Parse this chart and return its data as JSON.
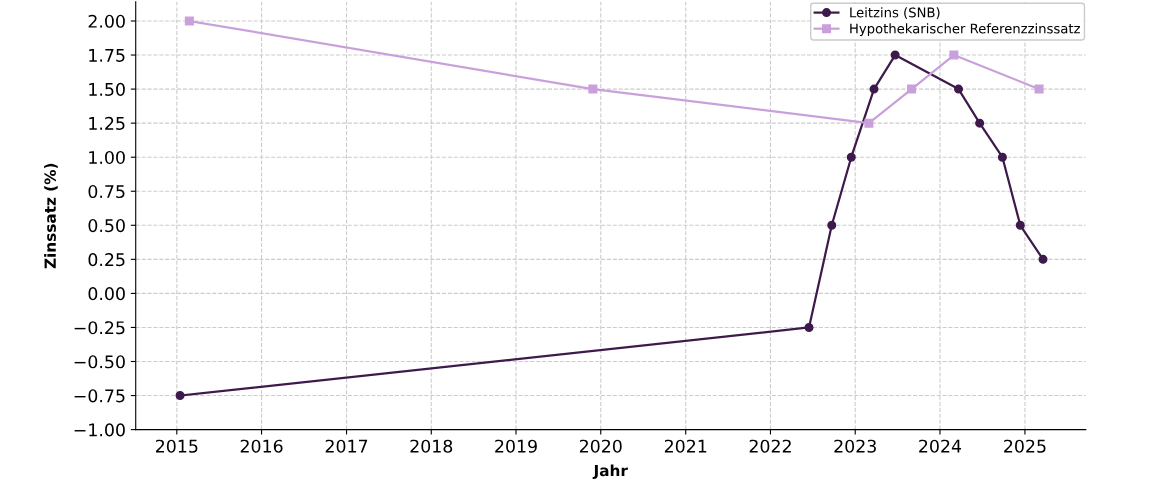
{
  "chart_data": {
    "type": "line",
    "xlabel": "Jahr",
    "ylabel": "Zinssatz (%)",
    "series": [
      {
        "name": "Leitzins (SNB)",
        "color": "#3d1a4b",
        "marker": "circle",
        "x": [
          "2015-01-15",
          "2022-06-16",
          "2022-09-22",
          "2022-12-15",
          "2023-03-23",
          "2023-06-22",
          "2024-03-21",
          "2024-06-20",
          "2024-09-26",
          "2024-12-12",
          "2025-03-20"
        ],
        "values": [
          -0.75,
          -0.25,
          0.5,
          1.0,
          1.5,
          1.75,
          1.5,
          1.25,
          1.0,
          0.5,
          0.25
        ]
      },
      {
        "name": "Hypothekarischer Referenzzinssatz",
        "color": "#c9a0dc",
        "marker": "square",
        "x": [
          "2015-02-24",
          "2019-11-28",
          "2023-03-01",
          "2023-09-01",
          "2024-03-01",
          "2025-03-03"
        ],
        "values": [
          2.0,
          1.5,
          1.25,
          1.5,
          1.75,
          1.5
        ]
      }
    ],
    "xlim": [
      "2014-07-08",
      "2025-09-20"
    ],
    "xticks": [
      {
        "value": "2015",
        "label": "2015"
      },
      {
        "value": "2016",
        "label": "2016"
      },
      {
        "value": "2017",
        "label": "2017"
      },
      {
        "value": "2018",
        "label": "2018"
      },
      {
        "value": "2019",
        "label": "2019"
      },
      {
        "value": "2020",
        "label": "2020"
      },
      {
        "value": "2021",
        "label": "2021"
      },
      {
        "value": "2022",
        "label": "2022"
      },
      {
        "value": "2023",
        "label": "2023"
      },
      {
        "value": "2024",
        "label": "2024"
      },
      {
        "value": "2025",
        "label": "2025"
      }
    ],
    "ylim": [
      -1.0,
      2.14
    ],
    "yticks": [
      {
        "value": -1.0,
        "label": "−1.00"
      },
      {
        "value": -0.75,
        "label": "−0.75"
      },
      {
        "value": -0.5,
        "label": "−0.50"
      },
      {
        "value": -0.25,
        "label": "−0.25"
      },
      {
        "value": 0,
        "label": "0.00"
      },
      {
        "value": 0.25,
        "label": "0.25"
      },
      {
        "value": 0.5,
        "label": "0.50"
      },
      {
        "value": 0.75,
        "label": "0.75"
      },
      {
        "value": 1.0,
        "label": "1.00"
      },
      {
        "value": 1.25,
        "label": "1.25"
      },
      {
        "value": 1.5,
        "label": "1.50"
      },
      {
        "value": 1.75,
        "label": "1.75"
      },
      {
        "value": 2.0,
        "label": "2.00"
      }
    ],
    "grid": true,
    "legend": "top right",
    "line_style": "solid"
  }
}
